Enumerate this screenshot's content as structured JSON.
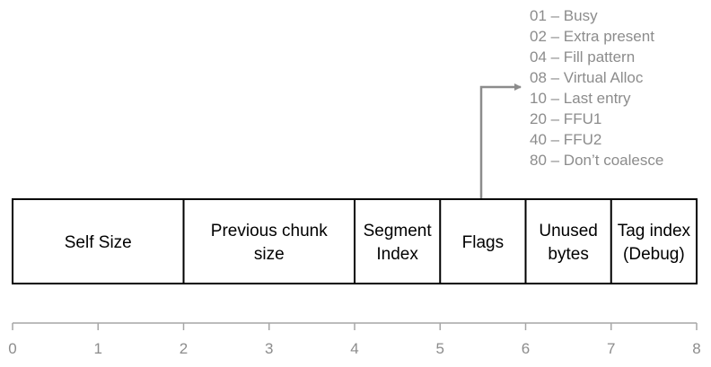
{
  "flags": [
    "01 – Busy",
    "02 – Extra present",
    "04 – Fill pattern",
    "08 – Virtual Alloc",
    "10 – Last entry",
    "20 – FFU1",
    "40 – FFU2",
    "80 – Don’t coalesce"
  ],
  "fields": [
    {
      "label": [
        "Self Size"
      ],
      "start": 0,
      "end": 2
    },
    {
      "label": [
        "Previous chunk",
        "size"
      ],
      "start": 2,
      "end": 4
    },
    {
      "label": [
        "Segment",
        "Index"
      ],
      "start": 4,
      "end": 5
    },
    {
      "label": [
        "Flags"
      ],
      "start": 5,
      "end": 6
    },
    {
      "label": [
        "Unused",
        "bytes"
      ],
      "start": 6,
      "end": 7
    },
    {
      "label": [
        "Tag index",
        "(Debug)"
      ],
      "start": 7,
      "end": 8
    }
  ],
  "axis": {
    "ticks": [
      "0",
      "1",
      "2",
      "3",
      "4",
      "5",
      "6",
      "7",
      "8"
    ],
    "range": [
      0,
      8
    ]
  },
  "arrow": {
    "from_field": "Flags",
    "to": "flags-list"
  },
  "colors": {
    "flag_text": "#8c8c8c",
    "axis": "#a6a6a6",
    "arrow": "#8c8c8c",
    "box_stroke": "#000000"
  }
}
